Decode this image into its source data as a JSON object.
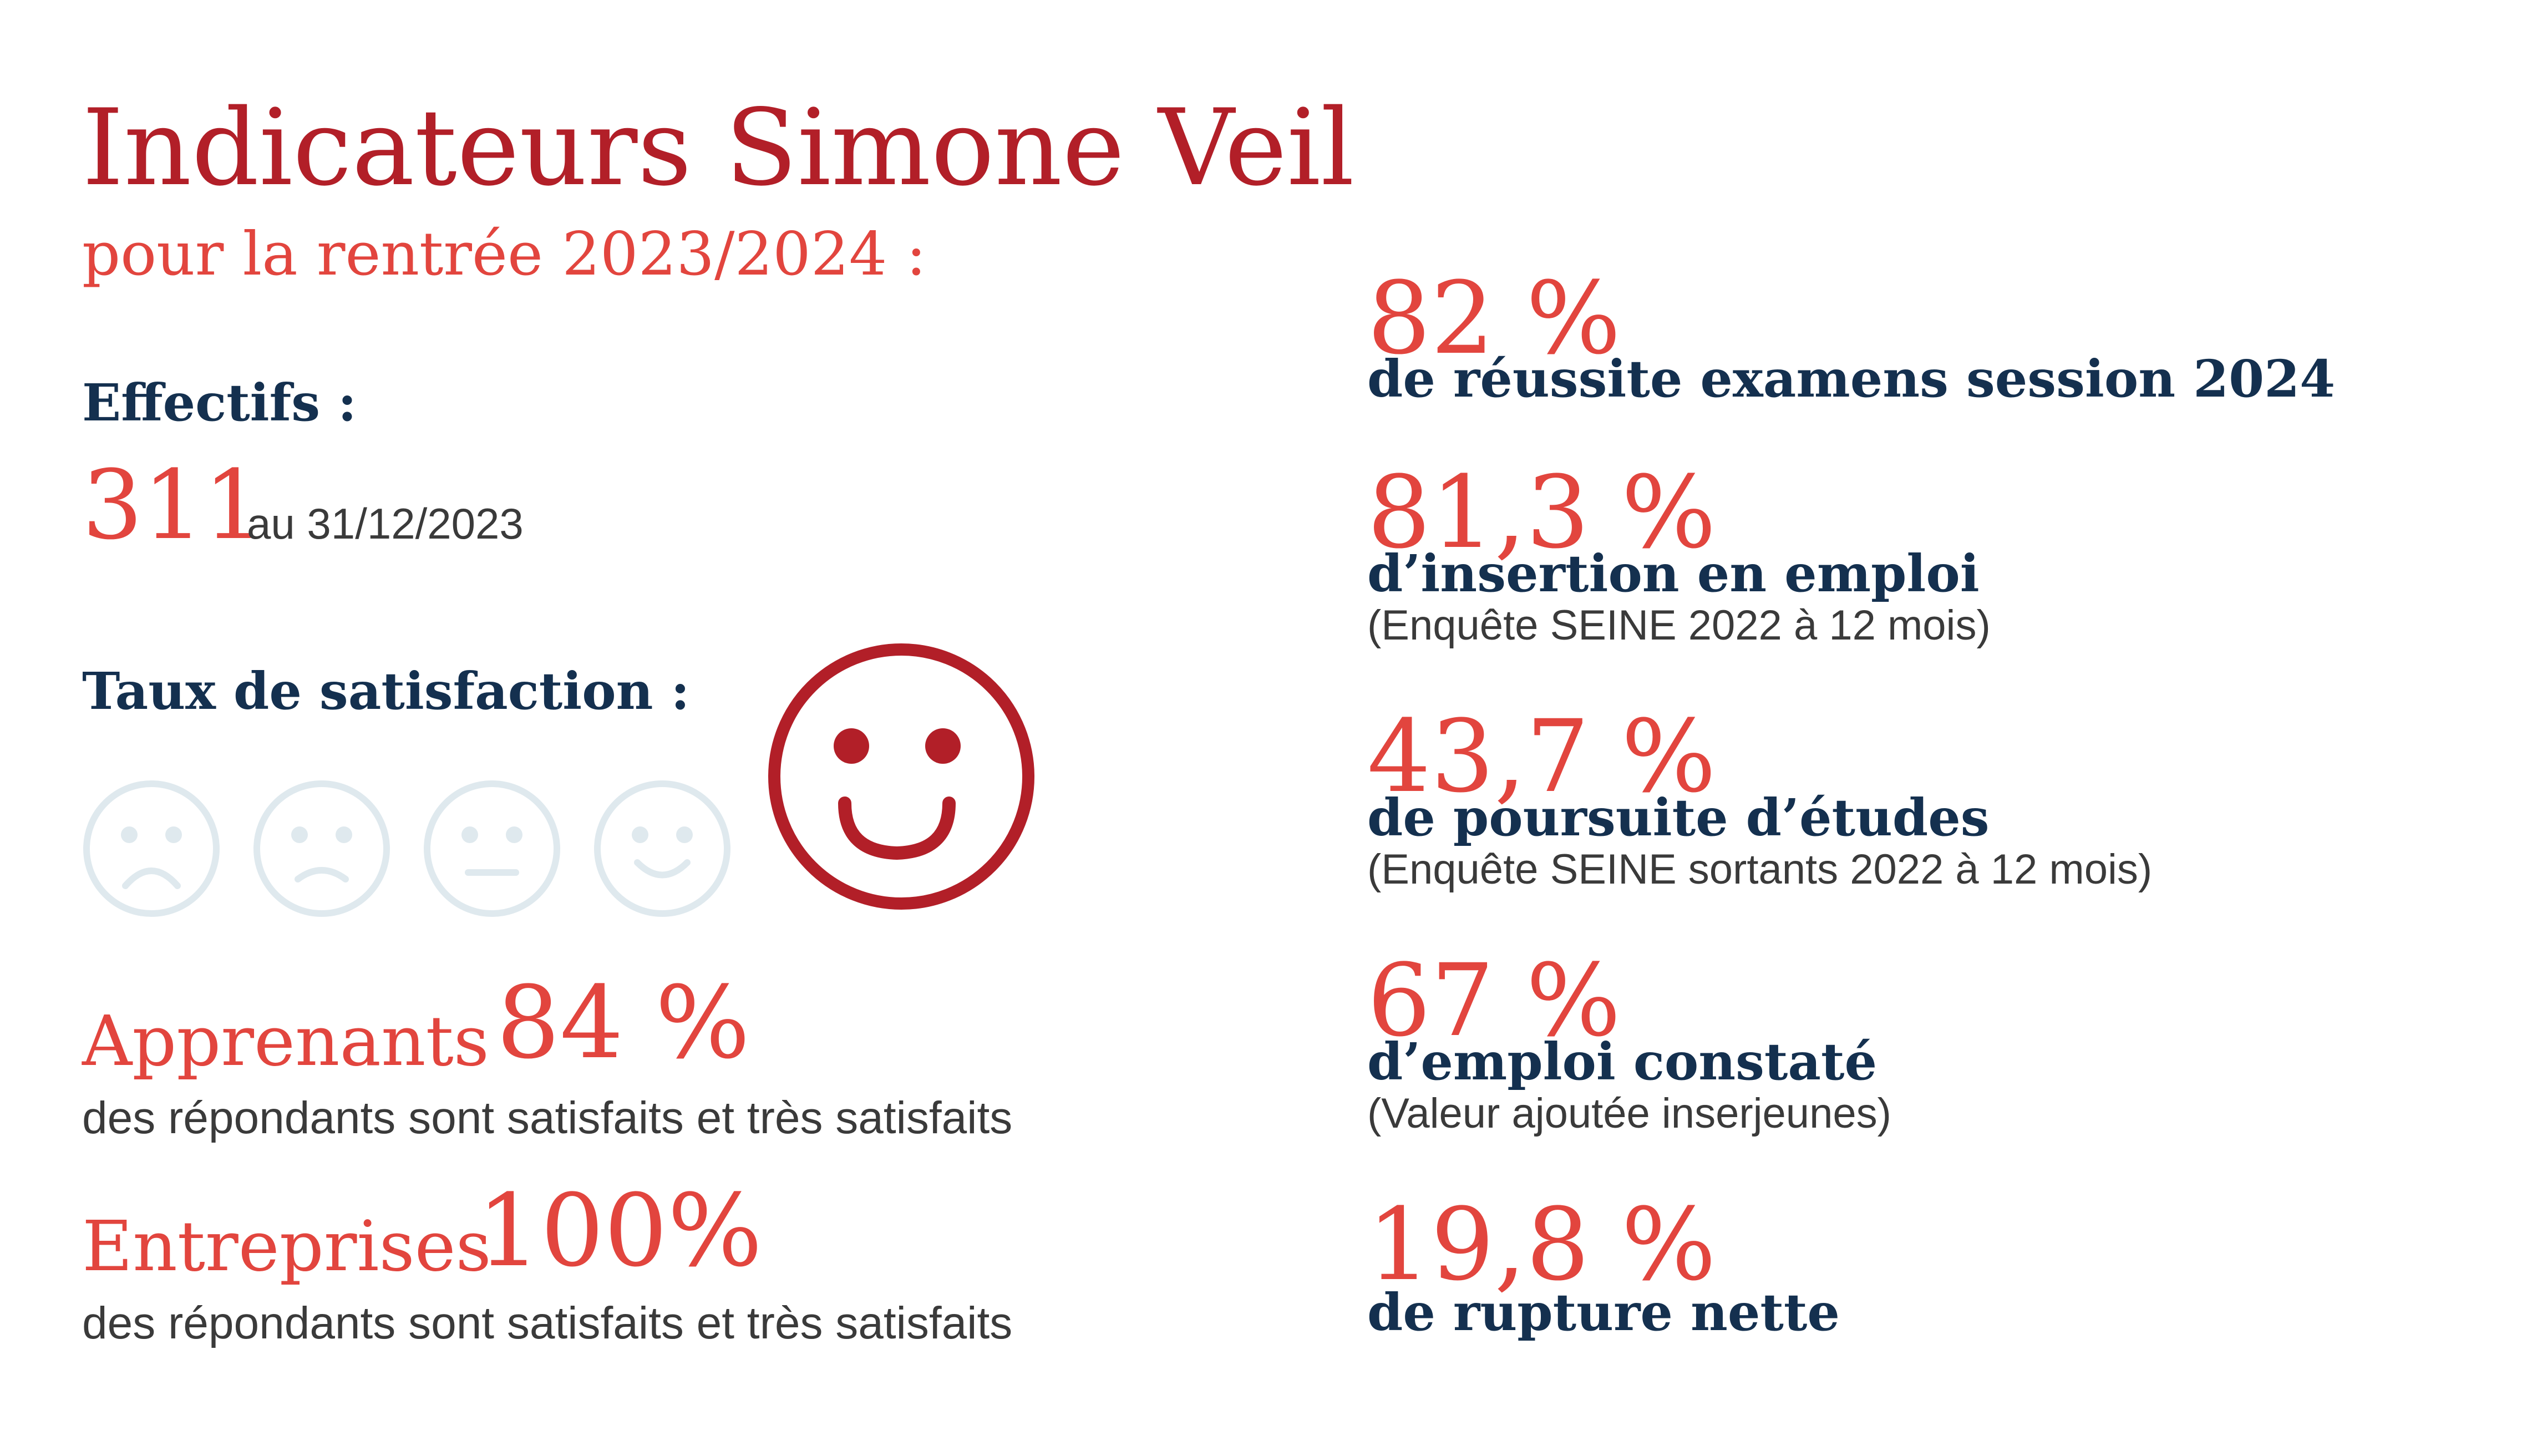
{
  "header": {
    "title": "Indicateurs Simone Veil",
    "subtitle": "pour la rentrée 2023/2024 :"
  },
  "effectifs": {
    "label": "Effectifs :",
    "value": "311",
    "date": "au 31/12/2023"
  },
  "satisfaction": {
    "label": "Taux de satisfaction :",
    "faces": [
      "very-sad-face-icon",
      "sad-face-icon",
      "neutral-face-icon",
      "smile-face-icon",
      "big-smile-face-icon"
    ],
    "inactive_color": "#dfe9ee",
    "active_color": "#b21f28",
    "apprenants": {
      "label": "Apprenants",
      "value": "84 %",
      "note": "des répondants sont satisfaits et très satisfaits"
    },
    "entreprises": {
      "label": "Entreprises",
      "value": "100%",
      "note": "des répondants sont satisfaits et très satisfaits"
    }
  },
  "indicators": [
    {
      "value": "82 %",
      "label": "de réussite examens session 2024",
      "note": ""
    },
    {
      "value": "81,3 %",
      "label": "d’insertion en emploi",
      "note": "(Enquête SEINE 2022 à 12 mois)"
    },
    {
      "value": "43,7 %",
      "label": "de poursuite d’études",
      "note": "(Enquête SEINE sortants 2022 à 12 mois)"
    },
    {
      "value": "67 %",
      "label": "d’emploi constaté",
      "note": "(Valeur ajoutée inserjeunes)"
    },
    {
      "value": "19,8 %",
      "label": "de rupture nette",
      "note": ""
    }
  ],
  "colors": {
    "dark_red": "#b21f28",
    "red": "#e2453e",
    "navy": "#14304f",
    "grey_text": "#3a3a3a"
  }
}
